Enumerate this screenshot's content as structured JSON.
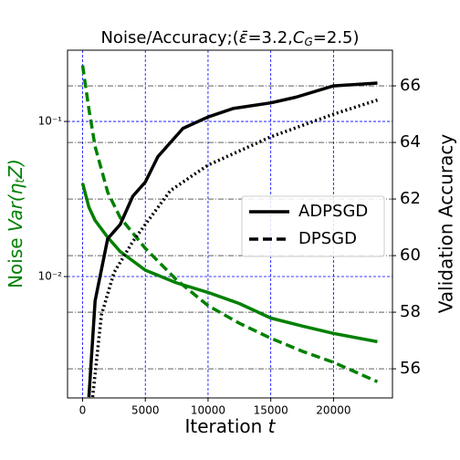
{
  "chart_data": {
    "type": "line",
    "title": [
      "Noise/Accuracy;(",
      "ε̄",
      "=3.2,",
      "C",
      "G",
      "=2.5)"
    ],
    "xlabel": [
      "Iteration ",
      "t"
    ],
    "ylabel": [
      "Noise ",
      "Var(η",
      "t",
      "Z)"
    ],
    "y2label": "Validation Accuracy",
    "xlim": [
      -1200,
      24700
    ],
    "xticks": [
      0,
      5000,
      10000,
      15000,
      20000
    ],
    "ylim": [
      0.00165,
      0.288
    ],
    "ylog": true,
    "yticks": [
      {
        "value": 0.01,
        "label": "10⁻²"
      },
      {
        "value": 0.1,
        "label": "10⁻¹"
      }
    ],
    "y2lim": [
      54.97,
      67.26
    ],
    "y2ticks": [
      56,
      58,
      60,
      62,
      64,
      66
    ],
    "grid": true,
    "legend": "right",
    "series": [
      {
        "color": "#008000",
        "style": "solid",
        "x": [
          0,
          500,
          1000,
          2000,
          3000,
          5000,
          7500,
          10000,
          12500,
          15000,
          17500,
          20000,
          23500
        ],
        "values": [
          0.04,
          0.028,
          0.023,
          0.0179,
          0.0145,
          0.011,
          0.0091,
          0.0079,
          0.0067,
          0.0054,
          0.0048,
          0.0043,
          0.0038
        ]
      },
      {
        "color": "#008000",
        "style": "dashed",
        "x": [
          0,
          500,
          1000,
          2000,
          3000,
          5000,
          7500,
          10000,
          12500,
          15000,
          17500,
          20000,
          23500
        ],
        "values": [
          0.23,
          0.12,
          0.069,
          0.035,
          0.024,
          0.0152,
          0.0095,
          0.0065,
          0.005,
          0.004,
          0.0033,
          0.0028,
          0.0021
        ]
      },
      {
        "name": "ADPSGD",
        "color": "#000000",
        "style": "solid",
        "axis": "y2",
        "x": [
          500,
          1000,
          2000,
          3000,
          4000,
          5000,
          6000,
          8000,
          10000,
          12000,
          15000,
          17000,
          20000,
          23500
        ],
        "values": [
          55.0,
          58.4,
          60.6,
          61.1,
          62.1,
          62.6,
          63.5,
          64.5,
          64.9,
          65.2,
          65.4,
          65.6,
          66.0,
          66.1
        ]
      },
      {
        "name": "DPSGD",
        "color": "#000000",
        "style": "dotted",
        "axis": "y2",
        "x": [
          800,
          1500,
          2500,
          4000,
          5000,
          7000,
          10000,
          15000,
          20000,
          23500
        ],
        "values": [
          55.0,
          57.9,
          59.4,
          60.5,
          61.1,
          62.3,
          63.2,
          64.2,
          65.0,
          65.5
        ]
      }
    ]
  }
}
